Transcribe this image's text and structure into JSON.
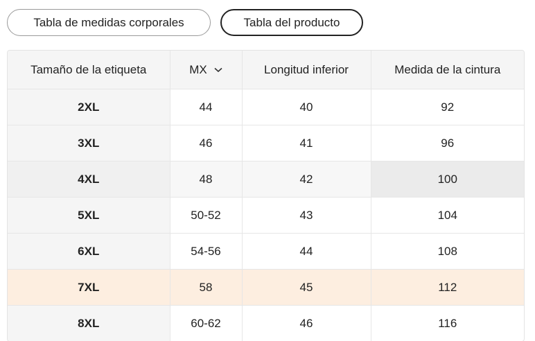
{
  "tabs": [
    "Tabla de medidas corporales",
    "Tabla del producto"
  ],
  "table": {
    "header": [
      "Tamaño de la etiqueta",
      "MX",
      "Longitud inferior",
      "Medida de la cintura"
    ],
    "rows": [
      [
        "2XL",
        "44",
        "40",
        "92"
      ],
      [
        "3XL",
        "46",
        "41",
        "96"
      ],
      [
        "4XL",
        "48",
        "42",
        "100"
      ],
      [
        "5XL",
        "50-52",
        "43",
        "104"
      ],
      [
        "6XL",
        "54-56",
        "44",
        "108"
      ],
      [
        "7XL",
        "58",
        "45",
        "112"
      ],
      [
        "8XL",
        "60-62",
        "46",
        "116"
      ]
    ]
  }
}
